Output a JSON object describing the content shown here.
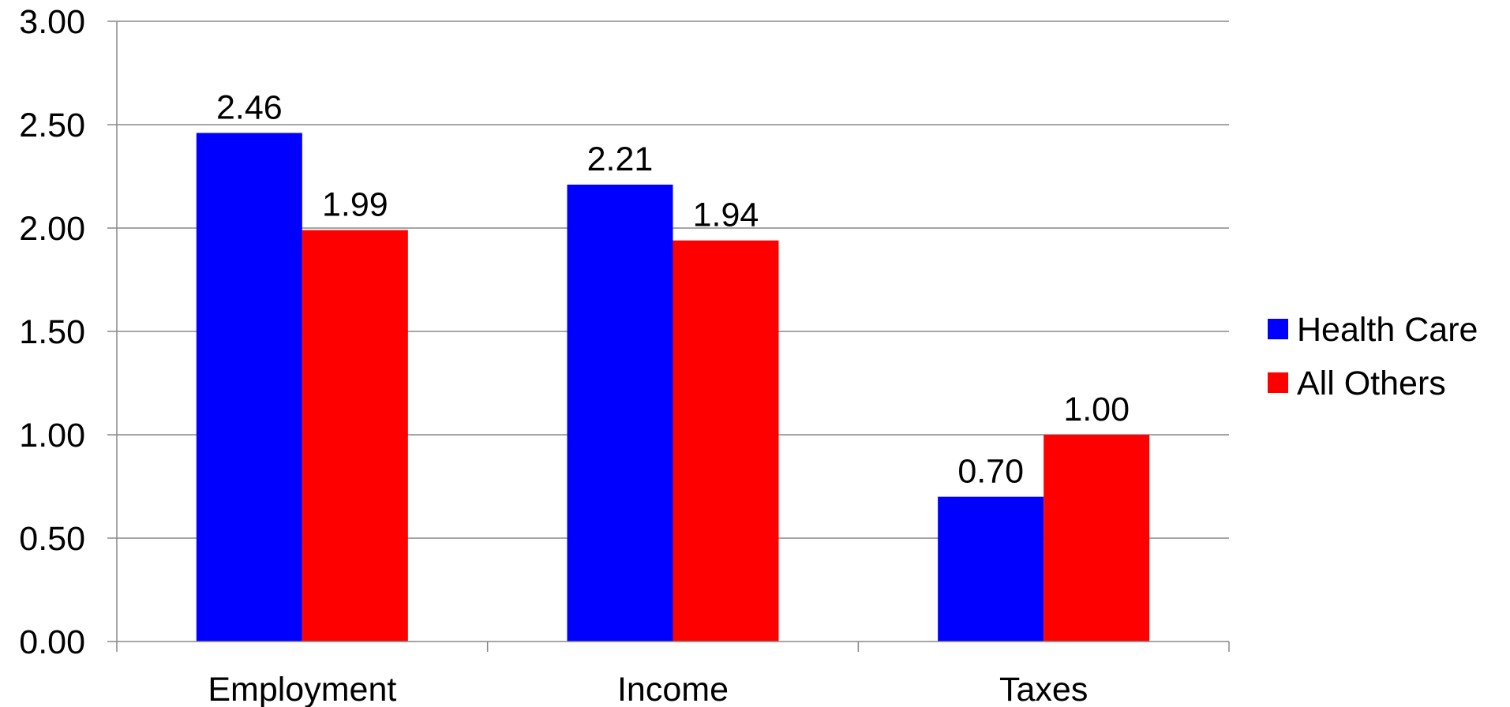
{
  "chart_data": {
    "type": "bar",
    "categories": [
      "Employment",
      "Income",
      "Taxes"
    ],
    "series": [
      {
        "name": "Health Care",
        "values": [
          2.46,
          2.21,
          0.7
        ],
        "labels": [
          "2.46",
          "2.21",
          "0.70"
        ],
        "color": "#0000FF"
      },
      {
        "name": "All Others",
        "values": [
          1.99,
          1.94,
          1.0
        ],
        "labels": [
          "1.99",
          "1.94",
          "1.00"
        ],
        "color": "#FF0000"
      }
    ],
    "ylim": [
      0,
      3
    ],
    "yticks": [
      "0.00",
      "0.50",
      "1.00",
      "1.50",
      "2.00",
      "2.50",
      "3.00"
    ],
    "grid": true,
    "legend_position": "right",
    "title": "",
    "xlabel": "",
    "ylabel": ""
  }
}
